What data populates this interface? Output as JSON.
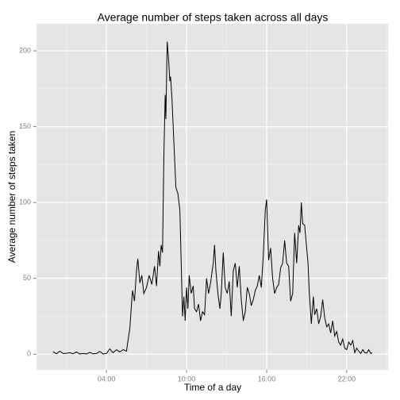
{
  "chart_data": {
    "type": "line",
    "title": "Average number of steps taken across all days",
    "x_label": "Time of a day",
    "y_label": "Average number of steps taken",
    "color": "#000000",
    "grid": true,
    "xlim": [
      -1.24,
      25.1
    ],
    "ylim": [
      -10.3,
      217.8
    ],
    "xticks": [
      {
        "value": 4,
        "label": "04:00"
      },
      {
        "value": 10,
        "label": "10:00"
      },
      {
        "value": 16,
        "label": "16:00"
      },
      {
        "value": 22,
        "label": "22:00"
      }
    ],
    "yticks": [
      0,
      50,
      100,
      150,
      200
    ],
    "x": [
      0,
      0.25,
      0.5,
      0.75,
      1,
      1.25,
      1.5,
      1.75,
      2,
      2.25,
      2.5,
      2.75,
      3,
      3.25,
      3.5,
      3.75,
      4,
      4.25,
      4.5,
      4.75,
      5,
      5.25,
      5.5,
      5.75,
      5.95,
      6.1,
      6.25,
      6.35,
      6.5,
      6.65,
      6.8,
      7,
      7.2,
      7.4,
      7.6,
      7.75,
      7.9,
      8.0,
      8.1,
      8.2,
      8.3,
      8.4,
      8.45,
      8.55,
      8.65,
      8.75,
      8.8,
      8.9,
      9.05,
      9.2,
      9.35,
      9.5,
      9.6,
      9.7,
      9.8,
      9.9,
      10.0,
      10.1,
      10.2,
      10.35,
      10.5,
      10.6,
      10.75,
      10.9,
      11.05,
      11.2,
      11.35,
      11.5,
      11.65,
      11.8,
      12.0,
      12.1,
      12.2,
      12.35,
      12.5,
      12.6,
      12.75,
      12.9,
      13.05,
      13.2,
      13.35,
      13.5,
      13.65,
      13.8,
      13.95,
      14.1,
      14.25,
      14.4,
      14.55,
      14.7,
      14.85,
      15.0,
      15.15,
      15.3,
      15.45,
      15.6,
      15.75,
      15.9,
      16.0,
      16.15,
      16.3,
      16.45,
      16.6,
      16.75,
      16.9,
      17.05,
      17.2,
      17.35,
      17.5,
      17.65,
      17.8,
      17.95,
      18.1,
      18.25,
      18.4,
      18.5,
      18.6,
      18.7,
      18.85,
      19.0,
      19.1,
      19.2,
      19.35,
      19.5,
      19.6,
      19.75,
      19.9,
      20.05,
      20.2,
      20.35,
      20.5,
      20.65,
      20.8,
      20.95,
      21.1,
      21.25,
      21.4,
      21.55,
      21.7,
      21.85,
      22.0,
      22.15,
      22.3,
      22.45,
      22.6,
      22.75,
      22.9,
      23.05,
      23.2,
      23.35,
      23.5,
      23.65,
      23.8,
      23.92
    ],
    "series": [
      {
        "name": "steps",
        "color": "#000000",
        "values": [
          1.7,
          0.3,
          2,
          0.5,
          0.6,
          1,
          0.3,
          1.5,
          0.2,
          0.5,
          0.2,
          1.2,
          0.3,
          0.5,
          1.8,
          0.2,
          0.5,
          3.5,
          1,
          3,
          1.5,
          3,
          2,
          17,
          42,
          35,
          55,
          63,
          47,
          52,
          40,
          44,
          52,
          46,
          58,
          45,
          68,
          58,
          72,
          67,
          130,
          171,
          155,
          206,
          195,
          180,
          183,
          170,
          140,
          110,
          106,
          95,
          60,
          25,
          38,
          22,
          44,
          30,
          52,
          40,
          45,
          30,
          28,
          33,
          22,
          28,
          26,
          50,
          40,
          47,
          60,
          72,
          55,
          40,
          30,
          40,
          67,
          44,
          40,
          48,
          25,
          55,
          60,
          44,
          58,
          36,
          22,
          28,
          44,
          40,
          32,
          36,
          42,
          45,
          52,
          44,
          65,
          95,
          102,
          62,
          70,
          50,
          40,
          44,
          46,
          57,
          60,
          75,
          60,
          58,
          35,
          40,
          80,
          60,
          85,
          80,
          100,
          86,
          85,
          70,
          60,
          40,
          20,
          38,
          26,
          30,
          20,
          25,
          36,
          24,
          18,
          20,
          14,
          22,
          12,
          15,
          8,
          6,
          10,
          4,
          3,
          8,
          6,
          9,
          1,
          4,
          2,
          0.5,
          3,
          1,
          0.8,
          3,
          0.5,
          1
        ]
      }
    ]
  }
}
